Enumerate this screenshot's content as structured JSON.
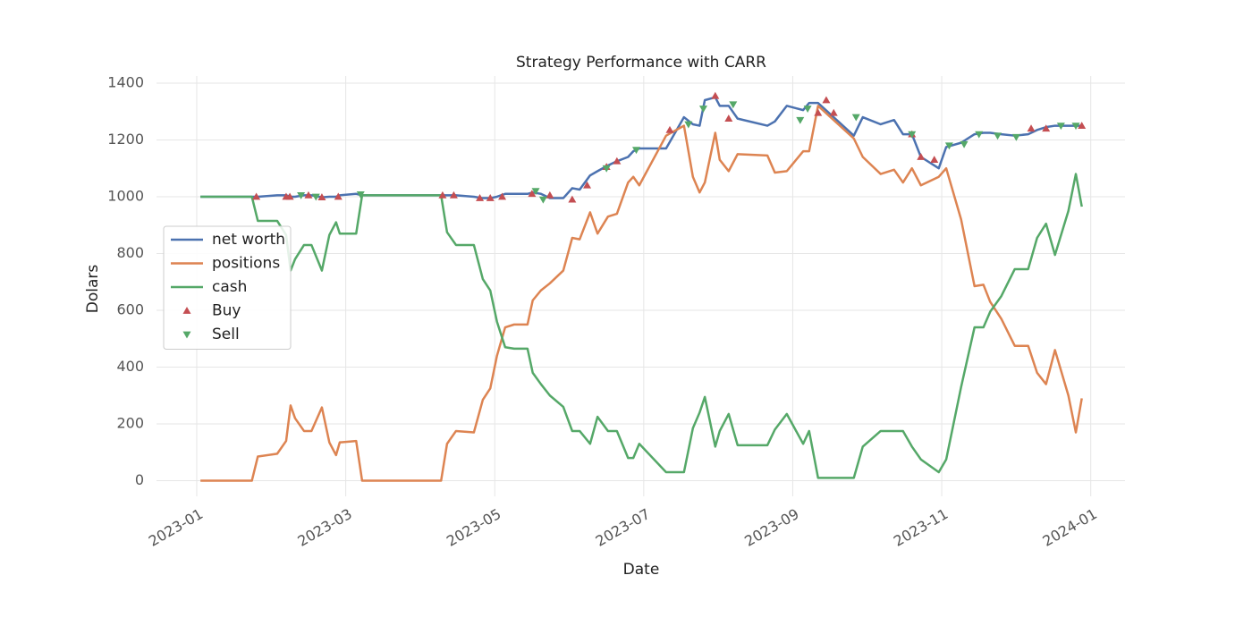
{
  "chart_data": {
    "type": "line",
    "title": "Strategy Performance with CARR",
    "x_label": "Date",
    "y_label": "Dolars",
    "x": [
      0.05,
      0.74,
      0.82,
      1.08,
      1.2,
      1.26,
      1.32,
      1.44,
      1.54,
      1.68,
      1.78,
      1.87,
      1.92,
      2.14,
      2.22,
      2.88,
      3.28,
      3.36,
      3.48,
      3.72,
      3.84,
      3.94,
      4.03,
      4.14,
      4.26,
      4.44,
      4.51,
      4.62,
      4.74,
      4.92,
      5.04,
      5.14,
      5.28,
      5.38,
      5.52,
      5.64,
      5.79,
      5.86,
      5.94,
      6.3,
      6.54,
      6.66,
      6.75,
      6.82,
      6.96,
      7.02,
      7.14,
      7.26,
      7.66,
      7.76,
      7.92,
      8.14,
      8.22,
      8.34,
      8.82,
      8.94,
      9.18,
      9.36,
      9.48,
      9.6,
      9.72,
      9.96,
      10.06,
      10.26,
      10.44,
      10.56,
      10.65,
      10.8,
      10.98,
      11.16,
      11.28,
      11.4,
      11.52,
      11.7,
      11.8,
      11.88
    ],
    "series": [
      {
        "name": "net worth",
        "color": "#4c72b0",
        "values": [
          1000,
          1000,
          1000,
          1005,
          1005,
          1000,
          1000,
          1005,
          1005,
          998,
          1000,
          1000,
          1005,
          1010,
          1005,
          1005,
          1005,
          1005,
          1005,
          1000,
          995,
          995,
          1000,
          1010,
          1010,
          1010,
          1015,
          1010,
          995,
          995,
          1030,
          1025,
          1075,
          1090,
          1110,
          1125,
          1140,
          1160,
          1170,
          1170,
          1280,
          1255,
          1250,
          1340,
          1350,
          1320,
          1320,
          1275,
          1250,
          1265,
          1320,
          1305,
          1330,
          1330,
          1215,
          1280,
          1255,
          1270,
          1220,
          1220,
          1140,
          1100,
          1175,
          1190,
          1220,
          1225,
          1225,
          1220,
          1215,
          1220,
          1235,
          1245,
          1250,
          1250,
          1250,
          1250
        ]
      },
      {
        "name": "positions",
        "color": "#dd8452",
        "values": [
          0,
          0,
          85,
          95,
          140,
          265,
          220,
          175,
          175,
          258,
          135,
          90,
          135,
          140,
          0,
          0,
          0,
          130,
          175,
          170,
          285,
          325,
          440,
          540,
          550,
          550,
          635,
          670,
          695,
          740,
          855,
          850,
          945,
          870,
          930,
          940,
          1050,
          1070,
          1040,
          1215,
          1250,
          1070,
          1015,
          1050,
          1225,
          1130,
          1090,
          1150,
          1145,
          1085,
          1090,
          1160,
          1160,
          1320,
          1205,
          1140,
          1080,
          1095,
          1050,
          1100,
          1040,
          1070,
          1100,
          920,
          685,
          690,
          630,
          570,
          475,
          475,
          380,
          340,
          460,
          300,
          170,
          290
        ]
      },
      {
        "name": "cash",
        "color": "#55a868",
        "values": [
          1000,
          1000,
          915,
          915,
          865,
          740,
          780,
          830,
          830,
          740,
          865,
          910,
          870,
          870,
          1005,
          1005,
          1005,
          875,
          830,
          830,
          710,
          670,
          560,
          470,
          465,
          465,
          380,
          340,
          300,
          260,
          175,
          175,
          130,
          225,
          175,
          175,
          80,
          80,
          130,
          30,
          30,
          185,
          240,
          295,
          120,
          175,
          235,
          125,
          125,
          180,
          235,
          130,
          175,
          10,
          10,
          120,
          175,
          175,
          175,
          120,
          75,
          30,
          75,
          330,
          540,
          540,
          595,
          650,
          745,
          745,
          855,
          905,
          795,
          950,
          1080,
          965
        ]
      }
    ],
    "markers": [
      {
        "name": "Buy",
        "color": "#c44e52",
        "marker": "triangle-up",
        "x": [
          0.8,
          1.2,
          1.25,
          1.5,
          1.68,
          1.9,
          3.3,
          3.45,
          3.8,
          3.94,
          4.1,
          4.5,
          4.74,
          5.04,
          5.24,
          5.5,
          5.64,
          6.35,
          6.96,
          7.14,
          8.34,
          8.45,
          8.55,
          9.6,
          9.72,
          9.9,
          11.2,
          11.4,
          11.88
        ],
        "values": [
          1000,
          1000,
          1000,
          1005,
          998,
          1000,
          1005,
          1005,
          995,
          995,
          1000,
          1010,
          1005,
          990,
          1040,
          1105,
          1125,
          1235,
          1355,
          1275,
          1295,
          1340,
          1295,
          1220,
          1140,
          1130,
          1240,
          1240,
          1250
        ]
      },
      {
        "name": "Sell",
        "color": "#55a868",
        "marker": "triangle-down",
        "x": [
          1.4,
          1.6,
          2.2,
          4.55,
          4.65,
          5.5,
          5.9,
          6.6,
          6.8,
          7.2,
          8.1,
          8.2,
          8.85,
          9.6,
          10.1,
          10.3,
          10.5,
          10.75,
          11.0,
          11.6,
          11.8
        ],
        "values": [
          1005,
          1000,
          1008,
          1020,
          990,
          1100,
          1165,
          1255,
          1310,
          1325,
          1270,
          1310,
          1280,
          1220,
          1180,
          1185,
          1220,
          1215,
          1210,
          1250,
          1250
        ]
      }
    ],
    "xlim": [
      -0.54,
      12.46
    ],
    "xticks": [
      {
        "value": 0,
        "label": "2023-01"
      },
      {
        "value": 2,
        "label": "2023-03"
      },
      {
        "value": 4,
        "label": "2023-05"
      },
      {
        "value": 6,
        "label": "2023-07"
      },
      {
        "value": 8,
        "label": "2023-09"
      },
      {
        "value": 10,
        "label": "2023-11"
      },
      {
        "value": 12,
        "label": "2024-01"
      }
    ],
    "ylim": [
      -55,
      1425
    ],
    "yticks": [
      0,
      200,
      400,
      600,
      800,
      1000,
      1200,
      1400
    ],
    "grid": true,
    "legend": "center left"
  }
}
